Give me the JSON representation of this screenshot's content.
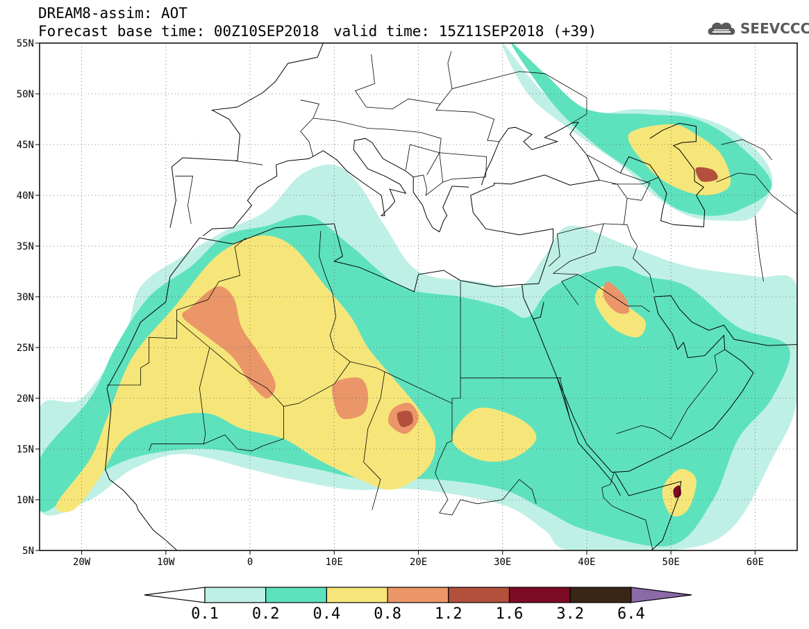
{
  "title": {
    "model": "DREAM8-assim: AOT",
    "base_time": "Forecast base time: 00Z10SEP2018",
    "valid_time": "valid time: 15Z11SEP2018 (+39)"
  },
  "logo": {
    "text": "SEEVCCC",
    "icon": "cloud-logo-icon",
    "color": "#5a5a5a"
  },
  "map": {
    "lon_range": [
      -25,
      65
    ],
    "lat_range": [
      5,
      55
    ],
    "lon_ticks": [
      {
        "lon": -20,
        "label": "20W"
      },
      {
        "lon": -10,
        "label": "10W"
      },
      {
        "lon": 0,
        "label": "0"
      },
      {
        "lon": 10,
        "label": "10E"
      },
      {
        "lon": 20,
        "label": "20E"
      },
      {
        "lon": 30,
        "label": "30E"
      },
      {
        "lon": 40,
        "label": "40E"
      },
      {
        "lon": 50,
        "label": "50E"
      },
      {
        "lon": 60,
        "label": "60E"
      }
    ],
    "lat_ticks": [
      {
        "lat": 55,
        "label": "55N"
      },
      {
        "lat": 50,
        "label": "50N"
      },
      {
        "lat": 45,
        "label": "45N"
      },
      {
        "lat": 40,
        "label": "40N"
      },
      {
        "lat": 35,
        "label": "35N"
      },
      {
        "lat": 30,
        "label": "30N"
      },
      {
        "lat": 25,
        "label": "25N"
      },
      {
        "lat": 20,
        "label": "20N"
      },
      {
        "lat": 15,
        "label": "15N"
      },
      {
        "lat": 10,
        "label": "10N"
      },
      {
        "lat": 5,
        "label": "5N"
      }
    ],
    "grid": "dotted"
  },
  "colorbar": {
    "levels": [
      "0.1",
      "0.2",
      "0.4",
      "0.8",
      "1.2",
      "1.6",
      "3.2",
      "6.4"
    ],
    "colors": [
      "#ffffff",
      "#bff0e6",
      "#5ee2bd",
      "#f6e679",
      "#ea9668",
      "#b3503b",
      "#7d0a25",
      "#3b2515",
      "#8c6aa8"
    ]
  },
  "fields": {
    "level_colors": {
      "l1": "#bff0e6",
      "l2": "#5ee2bd",
      "l3": "#f6e679",
      "l4": "#ea9668",
      "l5": "#b3503b",
      "l6": "#7d0a25"
    },
    "contours": [
      {
        "level": "l1",
        "pts": [
          [
            -25,
            19
          ],
          [
            -20,
            20
          ],
          [
            -15,
            26
          ],
          [
            -13,
            31
          ],
          [
            -8,
            34
          ],
          [
            -3,
            36.5
          ],
          [
            2,
            38.5
          ],
          [
            6,
            42
          ],
          [
            10,
            43
          ],
          [
            13,
            41
          ],
          [
            16,
            37
          ],
          [
            20,
            32.5
          ],
          [
            27,
            31.5
          ],
          [
            32,
            31
          ],
          [
            35,
            34
          ],
          [
            38,
            37
          ],
          [
            45,
            35
          ],
          [
            52,
            33
          ],
          [
            60,
            32
          ],
          [
            65,
            31
          ],
          [
            65,
            20
          ],
          [
            62,
            14
          ],
          [
            57,
            7
          ],
          [
            50,
            5
          ],
          [
            38,
            5
          ],
          [
            35,
            7
          ],
          [
            30,
            9.5
          ],
          [
            20,
            11
          ],
          [
            12,
            11
          ],
          [
            5,
            12
          ],
          [
            0,
            13
          ],
          [
            -8,
            14.5
          ],
          [
            -14,
            13
          ],
          [
            -19,
            10
          ],
          [
            -25,
            9
          ]
        ]
      },
      {
        "level": "l1",
        "pts": [
          [
            30,
            55
          ],
          [
            35,
            50
          ],
          [
            40,
            48
          ],
          [
            46,
            48.5
          ],
          [
            52,
            48
          ],
          [
            58,
            46
          ],
          [
            62,
            42
          ],
          [
            60,
            38
          ],
          [
            56,
            37.5
          ],
          [
            52,
            38
          ],
          [
            48,
            40
          ],
          [
            44,
            43
          ],
          [
            38,
            46.5
          ],
          [
            33,
            50
          ]
        ]
      },
      {
        "level": "l2",
        "pts": [
          [
            -25,
            14
          ],
          [
            -19,
            20
          ],
          [
            -16,
            25
          ],
          [
            -12,
            30
          ],
          [
            -7,
            33
          ],
          [
            -3,
            36
          ],
          [
            2,
            37
          ],
          [
            7,
            38
          ],
          [
            12,
            35
          ],
          [
            18,
            31
          ],
          [
            25,
            30
          ],
          [
            30,
            29
          ],
          [
            33,
            28
          ],
          [
            36,
            31
          ],
          [
            43,
            33
          ],
          [
            47,
            32
          ],
          [
            52,
            31
          ],
          [
            58,
            27
          ],
          [
            64,
            25
          ],
          [
            62,
            20
          ],
          [
            58,
            16
          ],
          [
            55,
            10
          ],
          [
            50,
            5.5
          ],
          [
            40,
            7
          ],
          [
            35,
            9
          ],
          [
            30,
            11
          ],
          [
            22,
            12
          ],
          [
            14,
            12
          ],
          [
            8,
            13
          ],
          [
            2,
            14
          ],
          [
            -5,
            15
          ],
          [
            -12,
            14.5
          ],
          [
            -17,
            13
          ],
          [
            -22,
            10
          ],
          [
            -25,
            9
          ]
        ]
      },
      {
        "level": "l2",
        "pts": [
          [
            31,
            55
          ],
          [
            35,
            52
          ],
          [
            40,
            48.5
          ],
          [
            47,
            48
          ],
          [
            53,
            47.5
          ],
          [
            58,
            45
          ],
          [
            62,
            41
          ],
          [
            58,
            38.5
          ],
          [
            54,
            38
          ],
          [
            50,
            39
          ],
          [
            46,
            42
          ],
          [
            41,
            45
          ],
          [
            36,
            49
          ]
        ]
      },
      {
        "level": "l3",
        "pts": [
          [
            -23,
            9.5
          ],
          [
            -19,
            14
          ],
          [
            -17,
            18
          ],
          [
            -14,
            24
          ],
          [
            -9,
            29
          ],
          [
            -4,
            34
          ],
          [
            1,
            36
          ],
          [
            5,
            35
          ],
          [
            9,
            31
          ],
          [
            12,
            28
          ],
          [
            14,
            25
          ],
          [
            17,
            22
          ],
          [
            20,
            19
          ],
          [
            22,
            16
          ],
          [
            21,
            13
          ],
          [
            17,
            11
          ],
          [
            13,
            12
          ],
          [
            8,
            14
          ],
          [
            4,
            16
          ],
          [
            -1,
            17
          ],
          [
            -5,
            18.5
          ],
          [
            -10,
            18
          ],
          [
            -15,
            16
          ],
          [
            -18,
            12
          ],
          [
            -21,
            9
          ]
        ]
      },
      {
        "level": "l3",
        "pts": [
          [
            42,
            31
          ],
          [
            45,
            29
          ],
          [
            47,
            27.5
          ],
          [
            46,
            26
          ],
          [
            43,
            27
          ],
          [
            41,
            29.5
          ]
        ]
      },
      {
        "level": "l3",
        "pts": [
          [
            45,
            46
          ],
          [
            50,
            47
          ],
          [
            53,
            46
          ],
          [
            56,
            44
          ],
          [
            57,
            41
          ],
          [
            54,
            40
          ],
          [
            50,
            41
          ],
          [
            47,
            43
          ]
        ]
      },
      {
        "level": "l3",
        "pts": [
          [
            27,
            19
          ],
          [
            32,
            18
          ],
          [
            34,
            16
          ],
          [
            31,
            14
          ],
          [
            27,
            14
          ],
          [
            24,
            16
          ]
        ]
      },
      {
        "level": "l3",
        "pts": [
          [
            49,
            11
          ],
          [
            51,
            13
          ],
          [
            53,
            12
          ],
          [
            52,
            9
          ],
          [
            50,
            8.5
          ]
        ]
      },
      {
        "level": "l4",
        "pts": [
          [
            -7,
            29
          ],
          [
            -4,
            31
          ],
          [
            -2,
            30
          ],
          [
            -1,
            27
          ],
          [
            1,
            24.5
          ],
          [
            3,
            21.5
          ],
          [
            2,
            20
          ],
          [
            0,
            21.5
          ],
          [
            -2,
            24
          ],
          [
            -5,
            26
          ],
          [
            -8,
            28
          ]
        ]
      },
      {
        "level": "l4",
        "pts": [
          [
            10,
            21.5
          ],
          [
            13,
            22
          ],
          [
            14,
            20.5
          ],
          [
            13.5,
            18.5
          ],
          [
            11,
            18
          ],
          [
            10,
            19.5
          ]
        ]
      },
      {
        "level": "l4",
        "pts": [
          [
            17,
            19
          ],
          [
            19,
            19.5
          ],
          [
            20,
            18
          ],
          [
            18.5,
            16.5
          ],
          [
            16.5,
            17.5
          ]
        ]
      },
      {
        "level": "l4",
        "pts": [
          [
            42.5,
            31.5
          ],
          [
            44.5,
            30
          ],
          [
            45,
            28.5
          ],
          [
            43.5,
            28.5
          ],
          [
            42,
            30
          ]
        ]
      },
      {
        "level": "l5",
        "pts": [
          [
            17.5,
            18.5
          ],
          [
            19,
            18.7
          ],
          [
            19.3,
            17.6
          ],
          [
            18,
            17.2
          ]
        ]
      },
      {
        "level": "l5",
        "pts": [
          [
            53,
            42.7
          ],
          [
            55,
            42.5
          ],
          [
            55.5,
            41.6
          ],
          [
            53.6,
            41.4
          ]
        ]
      },
      {
        "level": "l6",
        "pts": [
          [
            50.3,
            11
          ],
          [
            51,
            11.4
          ],
          [
            51.2,
            10.5
          ],
          [
            50.5,
            10.2
          ]
        ]
      }
    ]
  }
}
